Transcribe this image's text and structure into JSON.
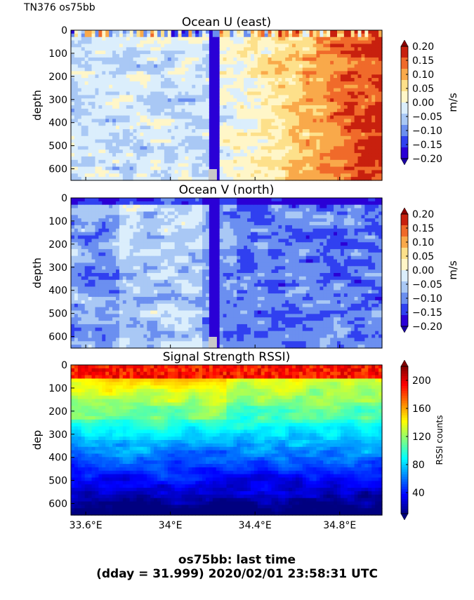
{
  "header": {
    "cruise_label": "TN376 os75bb"
  },
  "footer": {
    "line1": "os75bb: last time",
    "line2": "(dday = 31.999) 2020/02/01 23:58:31 UTC"
  },
  "chart_data": [
    {
      "type": "heatmap",
      "title": "Ocean U (east)",
      "ylabel": "depth",
      "xlabel": "",
      "x_range": [
        33.53,
        35.0
      ],
      "y_range": [
        0,
        650
      ],
      "y_inverted": true,
      "y_ticks": [
        0,
        100,
        200,
        300,
        400,
        500,
        600
      ],
      "colorbar": {
        "label": "m/s",
        "ticks": [
          "0.20",
          "0.15",
          "0.10",
          "0.05",
          "0.00",
          "−0.05",
          "−0.10",
          "−0.15",
          "−0.20"
        ],
        "levels": [
          -0.2,
          0.2
        ],
        "colormap": "jet",
        "extend": "both"
      },
      "description_values": {
        "west_region": "weak mixed, mostly -0.05 to 0.05",
        "stripe_at_34.2E": "strong negative jet (-0.2) full depth",
        "east_region": "positive 0.05 to 0.2, increasing eastward"
      }
    },
    {
      "type": "heatmap",
      "title": "Ocean V (north)",
      "ylabel": "depth",
      "xlabel": "",
      "x_range": [
        33.53,
        35.0
      ],
      "y_range": [
        0,
        650
      ],
      "y_inverted": true,
      "y_ticks": [
        0,
        100,
        200,
        300,
        400,
        500,
        600
      ],
      "colorbar": {
        "label": "m/s",
        "ticks": [
          "0.20",
          "0.15",
          "0.10",
          "0.05",
          "0.00",
          "−0.05",
          "−0.10",
          "−0.15",
          "−0.20"
        ],
        "levels": [
          -0.2,
          0.2
        ],
        "colormap": "jet",
        "extend": "both"
      },
      "description_values": {
        "overall": "predominantly negative -0.05 to -0.2",
        "stripe_at_34.2E": "strong negative -0.2 full depth"
      }
    },
    {
      "type": "heatmap",
      "title": "Signal Strength RSSI)",
      "ylabel": "dep",
      "xlabel": "",
      "x_range": [
        33.53,
        35.0
      ],
      "x_ticks": [
        "33.6°E",
        "34°E",
        "34.4°E",
        "34.8°E"
      ],
      "x_tick_values": [
        33.6,
        34.0,
        34.4,
        34.8
      ],
      "y_range": [
        0,
        650
      ],
      "y_inverted": true,
      "y_ticks": [
        0,
        100,
        200,
        300,
        400,
        500,
        600
      ],
      "colorbar": {
        "label": "RSSI counts",
        "ticks": [
          "200",
          "160",
          "120",
          "80",
          "40"
        ],
        "levels": [
          10,
          220
        ],
        "colormap": "jet",
        "extend": "both"
      },
      "description_values": {
        "surface_0_50": "high ~180-200",
        "mid_100_250": "~80-120",
        "deep_400_650": "~20-40"
      }
    }
  ]
}
